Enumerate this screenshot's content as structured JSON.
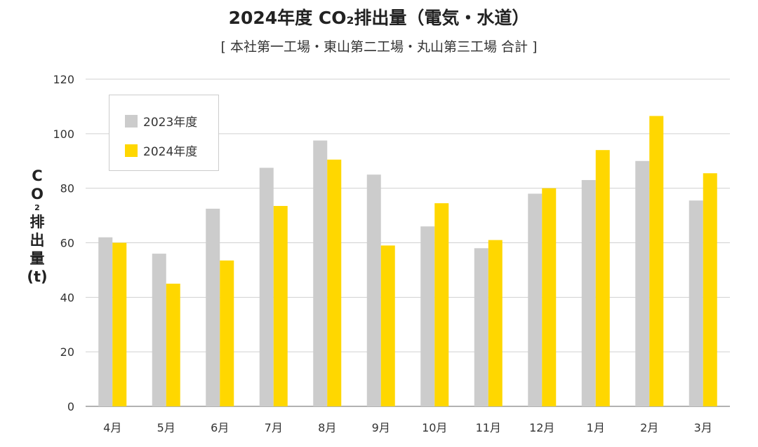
{
  "chart_data": {
    "type": "bar",
    "title": "2024年度 CO₂排出量（電気・水道）",
    "subtitle": "[ 本社第一工場・東山第二工場・丸山第三工場 合計 ]",
    "ylabel": {
      "c": "C",
      "o": "O",
      "sub": "2",
      "rest": [
        "排",
        "出",
        "量",
        "(t)"
      ]
    },
    "xlabel": "",
    "ylim": [
      0,
      120
    ],
    "yticks": [
      0,
      20,
      40,
      60,
      80,
      100,
      120
    ],
    "grid": true,
    "legend_position": "top-left",
    "categories": [
      "4月",
      "5月",
      "6月",
      "7月",
      "8月",
      "9月",
      "10月",
      "11月",
      "12月",
      "1月",
      "2月",
      "3月"
    ],
    "series": [
      {
        "name": "2023年度",
        "color": "#cccccc",
        "values": [
          62,
          56,
          72.5,
          87.5,
          97.5,
          85,
          66,
          58,
          78,
          83,
          90,
          75.5
        ]
      },
      {
        "name": "2024年度",
        "color": "#ffd700",
        "values": [
          60,
          45,
          53.5,
          73.5,
          90.5,
          59,
          74.5,
          61,
          80,
          94,
          106.5,
          85.5
        ]
      }
    ]
  }
}
